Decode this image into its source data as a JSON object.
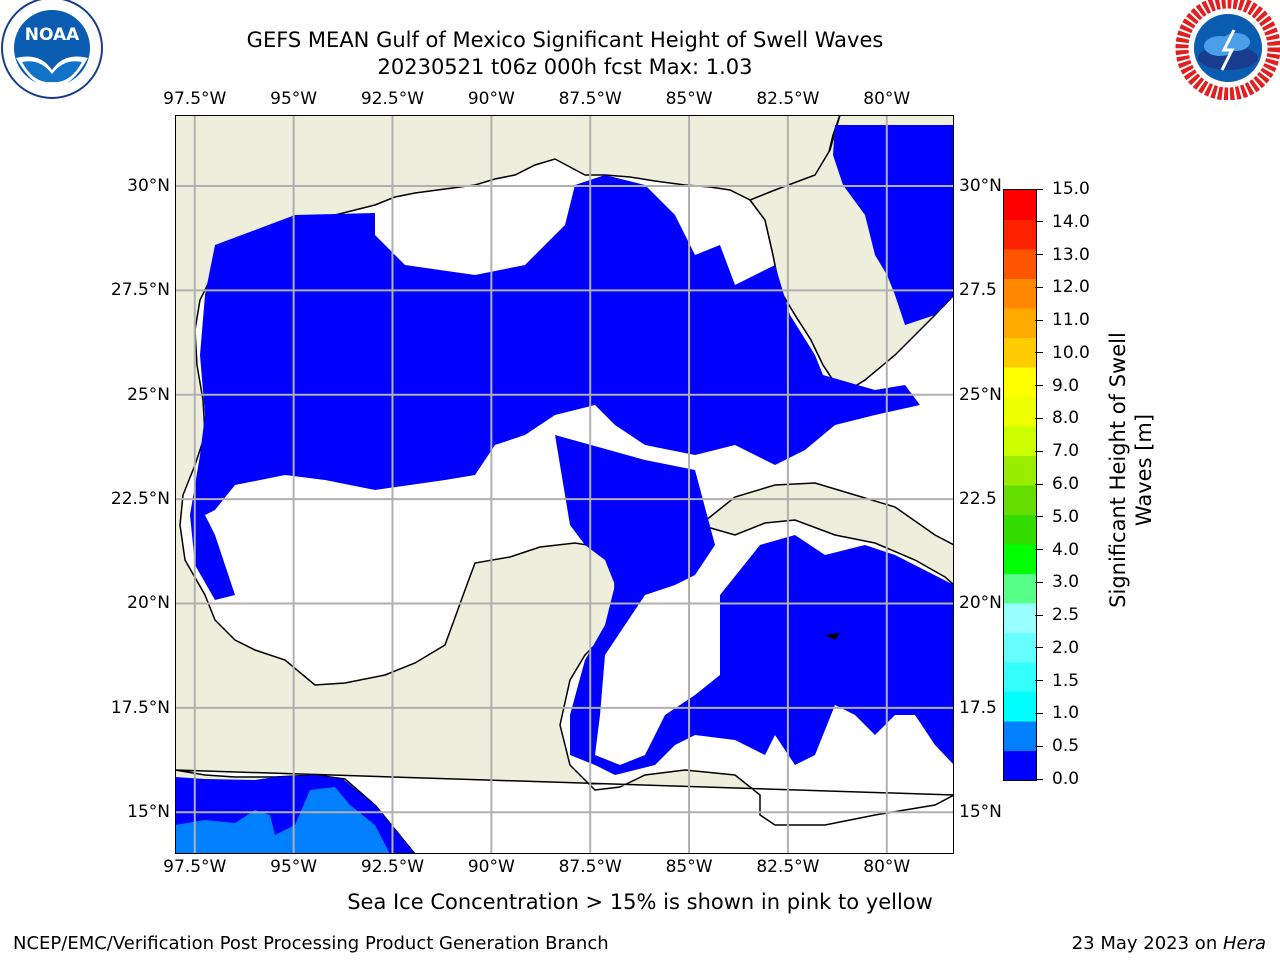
{
  "header": {
    "title_line1": "GEFS MEAN Gulf of Mexico Significant Height of Swell Waves",
    "title_line2": "20230521 t06z 000h fcst   Max: 1.03"
  },
  "logos": {
    "left": {
      "name": "noaa-logo",
      "text": "NOAA",
      "ring_text": "NATIONAL OCEANIC AND ATMOSPHERIC ADMINISTRATION · U.S. DEPARTMENT OF COMMERCE"
    },
    "right": {
      "name": "nws-logo",
      "ring_text": "NATIONAL WEATHER SERVICE"
    }
  },
  "map": {
    "lon_labels": [
      "97.5°W",
      "95°W",
      "92.5°W",
      "90°W",
      "87.5°W",
      "85°W",
      "82.5°W",
      "80°W"
    ],
    "lon_values": [
      -97.5,
      -95,
      -92.5,
      -90,
      -87.5,
      -85,
      -82.5,
      -80
    ],
    "lat_labels_left": [
      "30°N",
      "27.5°N",
      "25°N",
      "22.5°N",
      "20°N",
      "17.5°N",
      "15°N"
    ],
    "lat_labels_right": [
      "30°N",
      "27.5",
      "25°N",
      "22.5",
      "20°N",
      "17.5",
      "15°N"
    ],
    "lat_values": [
      30,
      27.5,
      25,
      22.5,
      20,
      17.5,
      15
    ],
    "lon_range": [
      -98,
      -78.3
    ],
    "lat_range": [
      14,
      31.7
    ],
    "colors": {
      "land": "#eeeedd",
      "ocean_low": "#0000ff",
      "ocean_mid": "#0080ff",
      "missing": "#ffffff",
      "grid": "#b0b0b0"
    }
  },
  "colorbar": {
    "label": "Significant Height of Swell Waves [m]",
    "label_line1": "Significant Height of Swell",
    "label_line2": "Waves [m]",
    "tick_labels": [
      "0.0",
      "0.5",
      "1.0",
      "1.5",
      "2.0",
      "2.5",
      "3.0",
      "4.0",
      "5.0",
      "6.0",
      "7.0",
      "8.0",
      "9.0",
      "10.0",
      "11.0",
      "12.0",
      "13.0",
      "14.0",
      "15.0"
    ],
    "colors": [
      "#0000ff",
      "#0080ff",
      "#00ffff",
      "#33ffff",
      "#66ffff",
      "#99ffff",
      "#55ff88",
      "#00ff00",
      "#33dd00",
      "#66dd00",
      "#99ee00",
      "#ccff00",
      "#eeff00",
      "#ffff00",
      "#ffcc00",
      "#ffaa00",
      "#ff8800",
      "#ff5500",
      "#ff2200",
      "#ff0000"
    ]
  },
  "note": "Sea Ice Concentration > 15% is shown in pink to yellow",
  "footer": {
    "left": "NCEP/EMC/Verification Post Processing Product Generation Branch",
    "date": "23 May 2023 on ",
    "machine": "Hera"
  }
}
